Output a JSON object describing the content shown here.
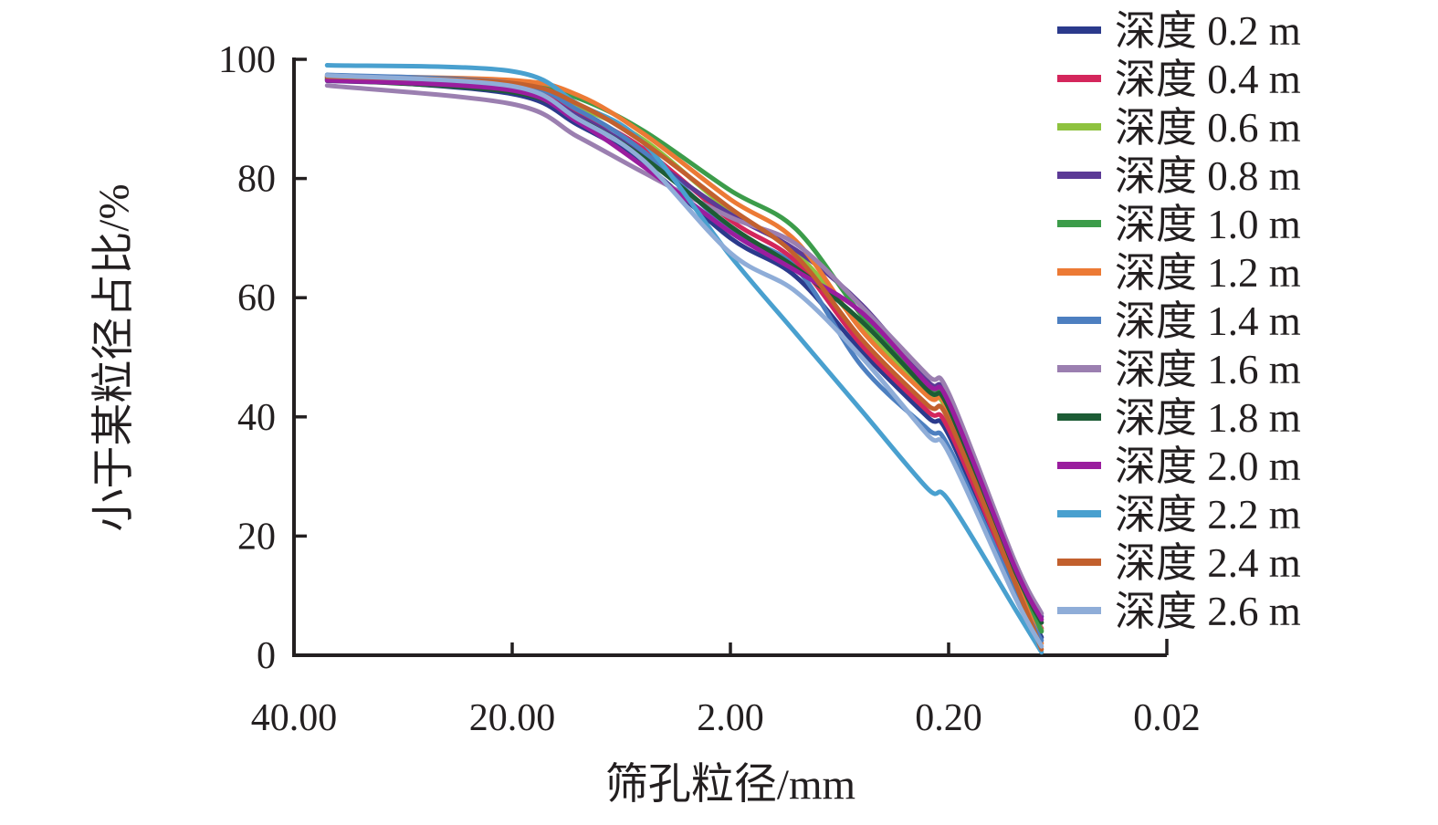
{
  "figure": {
    "background": "#ffffff",
    "axis_color": "#231f20",
    "text_color": "#231f20"
  },
  "chart_data": {
    "type": "line",
    "title": "",
    "xlabel": "筛孔粒径/mm",
    "ylabel": "小于某粒径占比/%",
    "x_scale": "piecewise-log-descending",
    "ylim": [
      0,
      100
    ],
    "grid": false,
    "legend_position": "right",
    "x_ticks": [
      {
        "value": 40,
        "label": "40.00"
      },
      {
        "value": 20,
        "label": "20.00"
      },
      {
        "value": 2,
        "label": "2.00"
      },
      {
        "value": 0.2,
        "label": "0.20"
      },
      {
        "value": 0.02,
        "label": "0.02"
      }
    ],
    "y_ticks": [
      {
        "value": 0,
        "label": "0"
      },
      {
        "value": 20,
        "label": "20"
      },
      {
        "value": 40,
        "label": "40"
      },
      {
        "value": 60,
        "label": "60"
      },
      {
        "value": 80,
        "label": "80"
      },
      {
        "value": 100,
        "label": "100"
      }
    ],
    "series": [
      {
        "name": "深度 0.2 m",
        "color": "#2b3a8c",
        "points": [
          [
            36,
            96.8
          ],
          [
            20,
            94.2
          ],
          [
            10,
            89
          ],
          [
            5,
            82.5
          ],
          [
            2,
            70
          ],
          [
            1,
            63.5
          ],
          [
            0.5,
            51
          ],
          [
            0.25,
            40
          ],
          [
            0.2,
            37
          ],
          [
            0.1,
            12
          ],
          [
            0.075,
            3
          ]
        ]
      },
      {
        "name": "深度 0.4 m",
        "color": "#d4265c",
        "points": [
          [
            36,
            96.9
          ],
          [
            20,
            95.2
          ],
          [
            10,
            91
          ],
          [
            5,
            85
          ],
          [
            2,
            73
          ],
          [
            1,
            66
          ],
          [
            0.5,
            52
          ],
          [
            0.25,
            41
          ],
          [
            0.2,
            38
          ],
          [
            0.1,
            12.5
          ],
          [
            0.075,
            4.5
          ]
        ]
      },
      {
        "name": "深度 0.6 m",
        "color": "#8ec23f",
        "points": [
          [
            36,
            96.7
          ],
          [
            20,
            95.8
          ],
          [
            10,
            92
          ],
          [
            5,
            86.5
          ],
          [
            2,
            74.5
          ],
          [
            1,
            67.5
          ],
          [
            0.5,
            55
          ],
          [
            0.25,
            44
          ],
          [
            0.2,
            40.5
          ],
          [
            0.1,
            13.5
          ],
          [
            0.075,
            4.2
          ]
        ]
      },
      {
        "name": "深度 0.8 m",
        "color": "#5c3a96",
        "points": [
          [
            36,
            96.4
          ],
          [
            20,
            95
          ],
          [
            10,
            90.5
          ],
          [
            5,
            84
          ],
          [
            2,
            74
          ],
          [
            1,
            68
          ],
          [
            0.5,
            58.8
          ],
          [
            0.25,
            46
          ],
          [
            0.2,
            43
          ],
          [
            0.1,
            15.5
          ],
          [
            0.075,
            6.5
          ]
        ]
      },
      {
        "name": "深度 1.0 m",
        "color": "#3c9c4a",
        "points": [
          [
            36,
            97
          ],
          [
            20,
            96.2
          ],
          [
            10,
            93.5
          ],
          [
            5,
            88
          ],
          [
            2,
            78
          ],
          [
            1,
            71.5
          ],
          [
            0.5,
            57
          ],
          [
            0.25,
            45
          ],
          [
            0.2,
            42
          ],
          [
            0.1,
            14
          ],
          [
            0.075,
            4
          ]
        ]
      },
      {
        "name": "深度 1.2 m",
        "color": "#ec7a35",
        "points": [
          [
            36,
            97.2
          ],
          [
            20,
            96.5
          ],
          [
            10,
            94
          ],
          [
            5,
            87.5
          ],
          [
            2,
            76.5
          ],
          [
            1,
            69.5
          ],
          [
            0.5,
            54.5
          ],
          [
            0.25,
            43.5
          ],
          [
            0.2,
            41
          ],
          [
            0.1,
            13
          ],
          [
            0.075,
            2
          ]
        ]
      },
      {
        "name": "深度 1.4 m",
        "color": "#4d7fc0",
        "points": [
          [
            36,
            97.4
          ],
          [
            20,
            96
          ],
          [
            10,
            91.5
          ],
          [
            5,
            84.5
          ],
          [
            2,
            71.5
          ],
          [
            1,
            65
          ],
          [
            0.5,
            48.5
          ],
          [
            0.25,
            38
          ],
          [
            0.2,
            35
          ],
          [
            0.1,
            11
          ],
          [
            0.075,
            2.5
          ]
        ]
      },
      {
        "name": "深度 1.6 m",
        "color": "#9b7fb0",
        "points": [
          [
            36,
            95.6
          ],
          [
            20,
            92.5
          ],
          [
            10,
            87
          ],
          [
            5,
            81
          ],
          [
            2,
            73.5
          ],
          [
            1,
            69
          ],
          [
            0.5,
            58.5
          ],
          [
            0.25,
            47
          ],
          [
            0.2,
            44
          ],
          [
            0.1,
            16
          ],
          [
            0.075,
            7
          ]
        ]
      },
      {
        "name": "深度 1.8 m",
        "color": "#1d5c35",
        "points": [
          [
            36,
            96.6
          ],
          [
            20,
            94.5
          ],
          [
            10,
            90
          ],
          [
            5,
            83.5
          ],
          [
            2,
            72
          ],
          [
            1,
            65
          ],
          [
            0.5,
            56
          ],
          [
            0.25,
            44.5
          ],
          [
            0.2,
            41.5
          ],
          [
            0.1,
            14.5
          ],
          [
            0.075,
            5.5
          ]
        ]
      },
      {
        "name": "深度 2.0 m",
        "color": "#9a1d9e",
        "points": [
          [
            36,
            96.5
          ],
          [
            20,
            94.8
          ],
          [
            10,
            89.5
          ],
          [
            5,
            82
          ],
          [
            2,
            71
          ],
          [
            1,
            64.5
          ],
          [
            0.5,
            57.5
          ],
          [
            0.25,
            45.5
          ],
          [
            0.2,
            42.5
          ],
          [
            0.1,
            15
          ],
          [
            0.075,
            6
          ]
        ]
      },
      {
        "name": "深度 2.2 m",
        "color": "#49a0cf",
        "points": [
          [
            36,
            99
          ],
          [
            20,
            98
          ],
          [
            10,
            92.5
          ],
          [
            5,
            86
          ],
          [
            2,
            67
          ],
          [
            1,
            54
          ],
          [
            0.5,
            41
          ],
          [
            0.25,
            28
          ],
          [
            0.2,
            26
          ],
          [
            0.1,
            8
          ],
          [
            0.075,
            0.5
          ]
        ]
      },
      {
        "name": "深度 2.4 m",
        "color": "#c2602e",
        "points": [
          [
            36,
            97.1
          ],
          [
            20,
            96
          ],
          [
            10,
            92.5
          ],
          [
            5,
            86
          ],
          [
            2,
            75
          ],
          [
            1,
            67
          ],
          [
            0.5,
            53
          ],
          [
            0.25,
            42
          ],
          [
            0.2,
            39.5
          ],
          [
            0.1,
            12.5
          ],
          [
            0.075,
            1
          ]
        ]
      },
      {
        "name": "深度 2.6 m",
        "color": "#8fadd8",
        "points": [
          [
            36,
            97.3
          ],
          [
            20,
            95.5
          ],
          [
            10,
            90
          ],
          [
            5,
            83
          ],
          [
            2,
            67.5
          ],
          [
            1,
            61
          ],
          [
            0.5,
            50
          ],
          [
            0.25,
            37
          ],
          [
            0.2,
            34
          ],
          [
            0.1,
            10
          ],
          [
            0.075,
            1.5
          ]
        ]
      }
    ]
  }
}
